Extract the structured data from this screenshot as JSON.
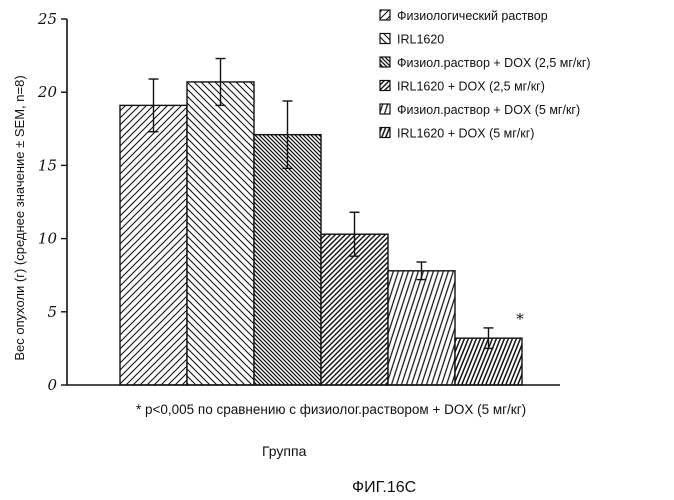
{
  "chart_data": {
    "type": "bar",
    "categories": [
      "Физиологический раствор",
      "IRL1620",
      "Физиол.раствор + DOX (2,5 мг/кг)",
      "IRL1620  + DOX (2,5 мг/кг)",
      "Физиол.раствор + DOX (5 мг/кг)",
      "IRL1620 + DOX (5 мг/кг)"
    ],
    "values": [
      19.1,
      20.7,
      17.1,
      10.3,
      7.8,
      3.2
    ],
    "errors": [
      1.8,
      1.6,
      2.3,
      1.5,
      0.6,
      0.7
    ],
    "patterns": [
      "diag-up",
      "diag-down",
      "diag-down-dense",
      "diag-up-dense",
      "vertical-slant",
      "vertical-slant-dense"
    ],
    "ylabel": "Вес опухоли (г) (среднее значение ± SEM, n=8)",
    "xlabel": "Группа",
    "ylim": [
      0,
      25
    ],
    "yticks": [
      "0",
      "5",
      "10",
      "15",
      "20",
      "25"
    ],
    "legend_position": "top-right",
    "significance_marker": "*",
    "significance_bar_index": 5,
    "footnote": "* p<0,005 по сравнению с физиолог.раствором + DOX (5 мг/кг)",
    "grid": false
  },
  "figure_caption": "ФИГ.16С"
}
